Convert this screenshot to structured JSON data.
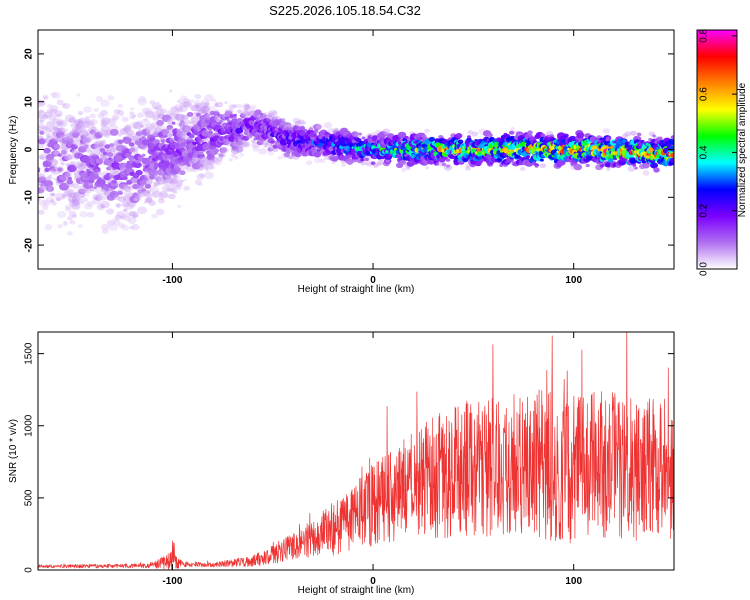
{
  "title": "S225.2026.105.18.54.C32",
  "colors": {
    "snr_line": "#ee3333",
    "points": "#7a1fd6"
  },
  "chart_data": [
    {
      "type": "heatmap",
      "name": "spectrogram",
      "xlabel": "Height of straight line (km)",
      "ylabel": "Frequency (Hz)",
      "xlim": [
        -167,
        150
      ],
      "ylim": [
        -25,
        25
      ],
      "xticks": [
        -100,
        0,
        100
      ],
      "yticks": [
        20,
        10,
        0,
        -10,
        -20
      ],
      "grid": false,
      "colorbar": {
        "label": "Normalized spectral amplitude",
        "range": [
          0.0,
          0.82
        ],
        "ticks": [
          0.0,
          0.2,
          0.4,
          0.6,
          0.8
        ],
        "colormap": [
          "#ffffff",
          "#b06ef0",
          "#7a00ff",
          "#0000ff",
          "#00ffff",
          "#00ff00",
          "#ffff00",
          "#ff8000",
          "#ff0000",
          "#ff00ff"
        ]
      },
      "band": {
        "center_hz": [
          [
            -167,
            -2
          ],
          [
            -120,
            -4
          ],
          [
            -100,
            0
          ],
          [
            -80,
            3
          ],
          [
            -60,
            5
          ],
          [
            -40,
            2
          ],
          [
            -20,
            1
          ],
          [
            0,
            0
          ],
          [
            50,
            0
          ],
          [
            100,
            0
          ],
          [
            150,
            -1
          ]
        ],
        "halfwidth_hz": [
          [
            -167,
            20
          ],
          [
            -100,
            16
          ],
          [
            -80,
            9
          ],
          [
            -60,
            6
          ],
          [
            -40,
            5
          ],
          [
            0,
            4
          ],
          [
            150,
            4
          ]
        ],
        "peak_amplitude": [
          [
            -167,
            0.12
          ],
          [
            -100,
            0.16
          ],
          [
            -60,
            0.22
          ],
          [
            -30,
            0.3
          ],
          [
            0,
            0.45
          ],
          [
            30,
            0.62
          ],
          [
            80,
            0.7
          ],
          [
            150,
            0.78
          ]
        ]
      }
    },
    {
      "type": "line",
      "name": "snr",
      "xlabel": "Height of straight line (km)",
      "ylabel": "SNR (10 * v/v)",
      "xlim": [
        -167,
        150
      ],
      "ylim": [
        0,
        1650
      ],
      "xticks": [
        -100,
        0,
        100
      ],
      "yticks": [
        0,
        500,
        1000,
        1500
      ],
      "grid": false,
      "envelope": {
        "x": [
          -167,
          -110,
          -100,
          -95,
          -80,
          -60,
          -50,
          -40,
          -30,
          -20,
          -10,
          0,
          10,
          20,
          30,
          40,
          60,
          80,
          100,
          120,
          150
        ],
        "mean": [
          25,
          30,
          70,
          40,
          35,
          60,
          110,
          160,
          220,
          290,
          360,
          450,
          520,
          590,
          640,
          690,
          720,
          740,
          700,
          720,
          700
        ],
        "spread": [
          15,
          20,
          100,
          25,
          20,
          50,
          90,
          130,
          180,
          250,
          320,
          380,
          430,
          500,
          560,
          620,
          650,
          680,
          700,
          700,
          650
        ]
      }
    }
  ]
}
